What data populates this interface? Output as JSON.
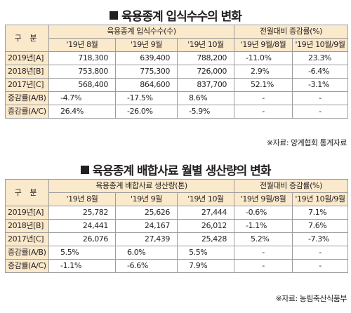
{
  "table1": {
    "title": "육용종계 입식수수의 변화",
    "group_header_left": "육용종계 입식수수(수)",
    "group_header_right": "전월대비 증감률(%)",
    "row_header": "구 분",
    "columns": [
      "'19년 8월",
      "'19년 9월",
      "'19년 10월",
      "'19년 9월/8월",
      "'19년 10월/9월"
    ],
    "rows": [
      {
        "label": "2019년[A]",
        "values": [
          "718,300",
          "639,400",
          "788,200",
          "-11.0%",
          "23.3%"
        ]
      },
      {
        "label": "2018년[B]",
        "values": [
          "753,800",
          "775,300",
          "726,000",
          "2.9%",
          "-6.4%"
        ]
      },
      {
        "label": "2017년[C]",
        "values": [
          "568,400",
          "864,600",
          "837,700",
          "52.1%",
          "-3.1%"
        ]
      },
      {
        "label": "증감률(A/B)",
        "values": [
          "-4.7%",
          "-17.5%",
          "8.6%",
          "-",
          "-"
        ]
      },
      {
        "label": "증감률(A/C)",
        "values": [
          "26.4%",
          "-26.0%",
          "-5.9%",
          "-",
          "-"
        ]
      }
    ],
    "source": "※자료: 양계협회 통계자료"
  },
  "table2": {
    "title": "육용종계 배합사료 월별 생산량의 변화",
    "group_header_left": "육용종계 배합사료 생산량(톤)",
    "group_header_right": "전월대비 증감률(%)",
    "row_header": "구 분",
    "columns": [
      "'19년 8월",
      "'19년 9월",
      "'19년 10월",
      "'19년 9월/8월",
      "'19년 10월/9월"
    ],
    "rows": [
      {
        "label": "2019년[A]",
        "values": [
          "25,782",
          "25,626",
          "27,444",
          "-0.6%",
          "7.1%"
        ]
      },
      {
        "label": "2018년[B]",
        "values": [
          "24,441",
          "24,167",
          "26,012",
          "-1.1%",
          "7.6%"
        ]
      },
      {
        "label": "2017년[C]",
        "values": [
          "26,076",
          "27,439",
          "25,428",
          "5.2%",
          "-7.3%"
        ]
      },
      {
        "label": "증감률(A/B)",
        "values": [
          "5.5%",
          "6.0%",
          "5.5%",
          "-",
          "-"
        ]
      },
      {
        "label": "증감률(A/C)",
        "values": [
          "-1.1%",
          "-6.6%",
          "7.9%",
          "-",
          "-"
        ]
      }
    ],
    "source": "※자료: 농림축산식품부"
  }
}
